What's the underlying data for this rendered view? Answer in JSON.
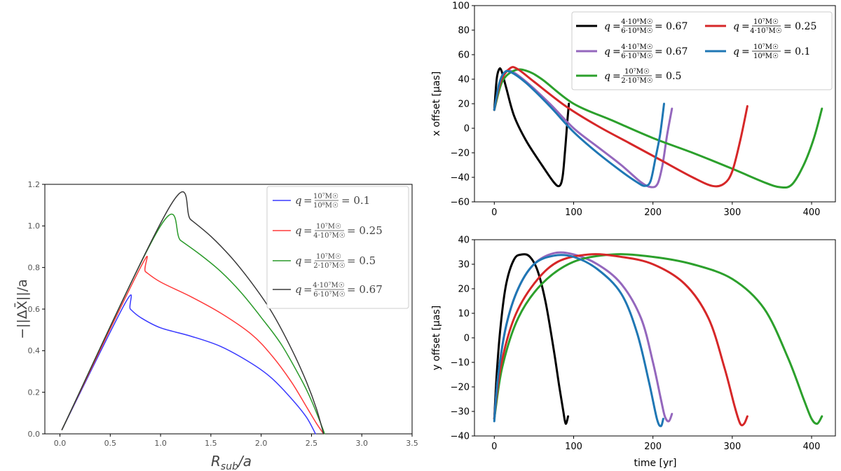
{
  "chart_data": [
    {
      "type": "line",
      "xlabel": "R_sub/a",
      "ylabel": "−||ΔX||/a",
      "xlim": [
        -0.15,
        3.5
      ],
      "ylim": [
        0,
        1.2
      ],
      "xticks": [
        "0.0",
        "0.5",
        "1.0",
        "1.5",
        "2.0",
        "2.5",
        "3.0",
        "3.5"
      ],
      "yticks": [
        "0.0",
        "0.2",
        "0.4",
        "0.6",
        "0.8",
        "1.0",
        "1.2"
      ],
      "legend_placement": "top-right",
      "grid": false,
      "series": [
        {
          "name": "q = 10⁷M☉ / 10⁸M☉ = 0.1",
          "color": "#3a3aff",
          "x": [
            0.02,
            0.65,
            0.7,
            0.8,
            1.0,
            1.3,
            1.6,
            1.9,
            2.1,
            2.3,
            2.45,
            2.54
          ],
          "y": [
            0.02,
            0.63,
            0.6,
            0.56,
            0.51,
            0.47,
            0.42,
            0.34,
            0.27,
            0.17,
            0.08,
            0.0
          ]
        },
        {
          "name": "q = 10⁷M☉ / 4·10⁷M☉ = 0.25",
          "color": "#ff3a3a",
          "x": [
            0.02,
            0.8,
            0.85,
            1.0,
            1.3,
            1.6,
            1.9,
            2.1,
            2.3,
            2.45,
            2.55,
            2.62
          ],
          "y": [
            0.02,
            0.8,
            0.78,
            0.73,
            0.66,
            0.58,
            0.48,
            0.38,
            0.25,
            0.13,
            0.05,
            0.0
          ]
        },
        {
          "name": "q = 10⁷M☉ / 2·10⁷M☉ = 0.5",
          "color": "#2a9a2a",
          "x": [
            0.02,
            1.0,
            1.2,
            1.4,
            1.6,
            1.8,
            2.0,
            2.2,
            2.4,
            2.5,
            2.6,
            2.63
          ],
          "y": [
            0.02,
            1.0,
            0.93,
            0.86,
            0.78,
            0.68,
            0.56,
            0.43,
            0.26,
            0.16,
            0.04,
            0.0
          ]
        },
        {
          "name": "q = 4·10⁷M☉ / 6·10⁷M☉ = 0.67",
          "color": "#3a3a3a",
          "x": [
            0.02,
            1.1,
            1.3,
            1.5,
            1.7,
            1.9,
            2.1,
            2.3,
            2.45,
            2.55,
            2.62
          ],
          "y": [
            0.02,
            1.1,
            1.03,
            0.95,
            0.85,
            0.73,
            0.59,
            0.41,
            0.25,
            0.12,
            0.0
          ]
        }
      ]
    },
    {
      "type": "line",
      "xlabel": "",
      "ylabel": "x offset [μas]",
      "xlim": [
        -25,
        430
      ],
      "ylim": [
        -60,
        100
      ],
      "xticks": [
        "0",
        "100",
        "200",
        "300",
        "400"
      ],
      "yticks": [
        "100",
        "80",
        "60",
        "40",
        "20",
        "0",
        "−20",
        "−40",
        "−60"
      ],
      "legend_placement": "top-right",
      "grid": false,
      "series": [
        {
          "name": "q = 4·10⁸M☉ / 6·10⁸M☉ = 0.67",
          "color": "#000000",
          "x": [
            0,
            3,
            6,
            9,
            15,
            25,
            40,
            60,
            75,
            82,
            86,
            89,
            92,
            94
          ],
          "y": [
            15,
            40,
            48,
            47,
            33,
            10,
            -10,
            -30,
            -44,
            -47,
            -40,
            -20,
            5,
            20
          ]
        },
        {
          "name": "q = 4·10⁷M☉ / 6·10⁷M☉ = 0.67",
          "color": "#9467bd",
          "x": [
            0,
            6,
            12,
            20,
            40,
            70,
            100,
            130,
            160,
            185,
            198,
            206,
            212,
            218,
            224
          ],
          "y": [
            15,
            35,
            44,
            47,
            38,
            20,
            0,
            -15,
            -30,
            -44,
            -48,
            -45,
            -30,
            -5,
            16
          ]
        },
        {
          "name": "q = 10⁷M☉ / 2·10⁷M☉ = 0.5",
          "color": "#2ca02c",
          "x": [
            0,
            10,
            25,
            40,
            60,
            100,
            150,
            200,
            250,
            300,
            340,
            360,
            375,
            390,
            403,
            413
          ],
          "y": [
            15,
            38,
            47,
            47,
            40,
            20,
            6,
            -8,
            -20,
            -33,
            -44,
            -48,
            -46,
            -30,
            -8,
            16
          ]
        },
        {
          "name": "q = 10⁷M☉ / 4·10⁷M☉ = 0.25",
          "color": "#d62728",
          "x": [
            0,
            8,
            20,
            30,
            50,
            90,
            130,
            170,
            210,
            250,
            275,
            290,
            300,
            310,
            319
          ],
          "y": [
            15,
            38,
            49,
            48,
            38,
            18,
            2,
            -12,
            -26,
            -40,
            -47,
            -45,
            -35,
            -10,
            18
          ]
        },
        {
          "name": "q = 10⁷M☉ / 10⁸M☉ = 0.1",
          "color": "#1f77b4",
          "x": [
            0,
            6,
            12,
            20,
            40,
            70,
            100,
            130,
            160,
            180,
            190,
            197,
            203,
            209,
            214
          ],
          "y": [
            15,
            36,
            45,
            46,
            37,
            18,
            -3,
            -20,
            -35,
            -44,
            -47,
            -43,
            -25,
            -5,
            20
          ]
        }
      ]
    },
    {
      "type": "line",
      "xlabel": "time [yr]",
      "ylabel": "y offset [μas]",
      "xlim": [
        -25,
        430
      ],
      "ylim": [
        -40,
        40
      ],
      "xticks": [
        "0",
        "100",
        "200",
        "300",
        "400"
      ],
      "yticks": [
        "40",
        "30",
        "20",
        "10",
        "0",
        "−10",
        "−20",
        "−30",
        "−40"
      ],
      "grid": false,
      "series": [
        {
          "name": "q = 4·10⁸M☉ / 6·10⁸M☉ = 0.67",
          "color": "#000000",
          "x": [
            0,
            3,
            8,
            15,
            25,
            35,
            45,
            55,
            65,
            75,
            82,
            87,
            90,
            93
          ],
          "y": [
            -33,
            -15,
            5,
            22,
            32,
            34,
            33,
            27,
            14,
            -5,
            -20,
            -30,
            -35,
            -32
          ]
        },
        {
          "name": "q = 4·10⁷M☉ / 6·10⁷M☉ = 0.67",
          "color": "#9467bd",
          "x": [
            0,
            5,
            15,
            30,
            50,
            75,
            100,
            130,
            160,
            185,
            200,
            210,
            215,
            220,
            224
          ],
          "y": [
            -33,
            -15,
            5,
            20,
            30,
            34.5,
            34,
            30,
            22,
            8,
            -10,
            -25,
            -32,
            -34,
            -31
          ]
        },
        {
          "name": "q = 10⁷M☉ / 2·10⁷M☉ = 0.5",
          "color": "#2ca02c",
          "x": [
            0,
            10,
            30,
            60,
            100,
            150,
            200,
            250,
            300,
            340,
            370,
            390,
            400,
            407,
            413
          ],
          "y": [
            -33,
            -12,
            8,
            22,
            31,
            34,
            33,
            30,
            24,
            12,
            -8,
            -25,
            -33,
            -35,
            -32
          ]
        },
        {
          "name": "q = 10⁷M☉ / 4·10⁷M☉ = 0.25",
          "color": "#d62728",
          "x": [
            0,
            8,
            25,
            50,
            80,
            120,
            160,
            200,
            240,
            270,
            290,
            303,
            310,
            315,
            319
          ],
          "y": [
            -33,
            -12,
            8,
            22,
            31,
            34,
            33,
            30,
            22,
            8,
            -12,
            -28,
            -35,
            -35,
            -32
          ]
        },
        {
          "name": "q = 10⁷M☉ / 10⁸M☉ = 0.1",
          "color": "#1f77b4",
          "x": [
            0,
            5,
            15,
            30,
            50,
            75,
            100,
            130,
            160,
            180,
            195,
            205,
            210,
            213
          ],
          "y": [
            -34,
            -15,
            5,
            20,
            30,
            33.5,
            33,
            28,
            18,
            2,
            -18,
            -33,
            -36,
            -33
          ]
        }
      ]
    }
  ]
}
